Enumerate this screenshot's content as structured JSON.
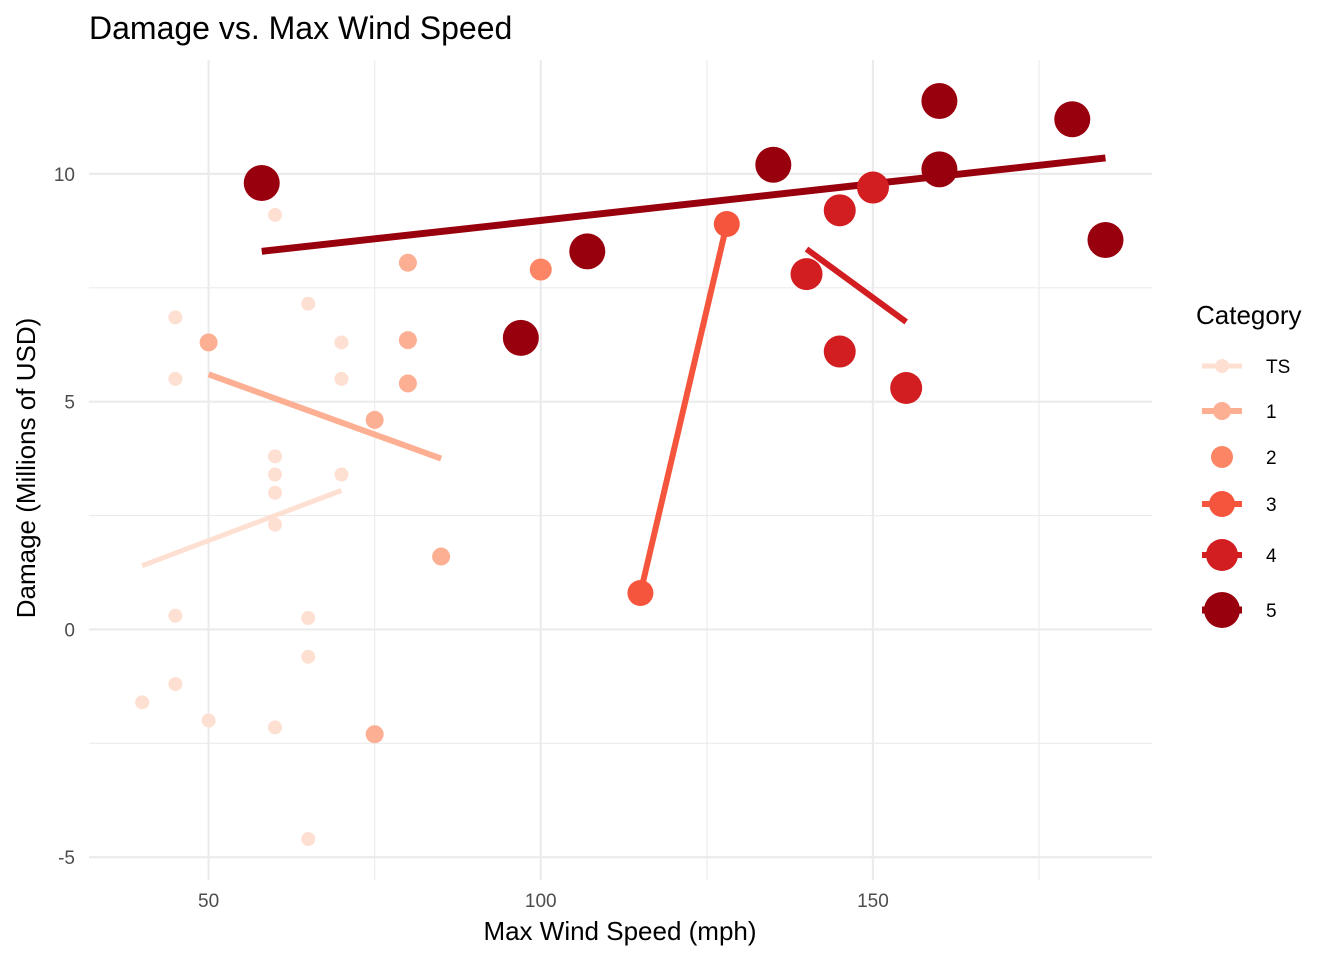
{
  "chart_data": {
    "type": "scatter",
    "title": "Damage vs. Max Wind Speed",
    "xlabel": "Max Wind Speed (mph)",
    "ylabel": "Damage (Millions of USD)",
    "xlim": [
      32,
      192
    ],
    "ylim": [
      -5.5,
      12.5
    ],
    "x_ticks": [
      50,
      100,
      150
    ],
    "x_tick_labels": [
      "50",
      "100",
      "150"
    ],
    "x_minor_ticks": [
      75,
      125,
      175
    ],
    "y_ticks": [
      -5,
      0,
      5,
      10
    ],
    "y_tick_labels": [
      "-5",
      "0",
      "5",
      "10"
    ],
    "y_minor_ticks": [
      -2.5,
      2.5,
      7.5
    ],
    "grid": true,
    "legend": {
      "title": "Category",
      "position": "right"
    },
    "series": [
      {
        "name": "TS",
        "color": "#fee0d2",
        "point_size": 7,
        "line_width": 5,
        "points": [
          [
            40,
            -1.6
          ],
          [
            45,
            6.85
          ],
          [
            45,
            5.5
          ],
          [
            45,
            0.3
          ],
          [
            45,
            -1.2
          ],
          [
            50,
            -2.0
          ],
          [
            60,
            9.1
          ],
          [
            60,
            3.8
          ],
          [
            60,
            3.4
          ],
          [
            60,
            3.0
          ],
          [
            60,
            2.3
          ],
          [
            60,
            -2.15
          ],
          [
            65,
            7.15
          ],
          [
            65,
            0.25
          ],
          [
            65,
            -0.6
          ],
          [
            65,
            -4.6
          ],
          [
            70,
            6.3
          ],
          [
            70,
            5.5
          ],
          [
            70,
            3.4
          ]
        ],
        "trend": [
          [
            40,
            1.4
          ],
          [
            70,
            3.05
          ]
        ]
      },
      {
        "name": "1",
        "color": "#fcaf93",
        "point_size": 9,
        "line_width": 6,
        "points": [
          [
            50,
            6.3
          ],
          [
            75,
            4.6
          ],
          [
            75,
            -2.3
          ],
          [
            80,
            8.05
          ],
          [
            80,
            6.35
          ],
          [
            80,
            5.4
          ],
          [
            85,
            1.6
          ]
        ],
        "trend": [
          [
            50,
            5.6
          ],
          [
            85,
            3.75
          ]
        ]
      },
      {
        "name": "2",
        "color": "#fc8565",
        "point_size": 11,
        "line_width": 6,
        "points": [
          [
            100,
            7.9
          ]
        ],
        "trend": []
      },
      {
        "name": "3",
        "color": "#f5553d",
        "point_size": 13,
        "line_width": 6,
        "points": [
          [
            115,
            0.8
          ],
          [
            128,
            8.9
          ]
        ],
        "trend": [
          [
            115,
            0.8
          ],
          [
            128,
            8.9
          ]
        ]
      },
      {
        "name": "4",
        "color": "#d21d21",
        "point_size": 16,
        "line_width": 6,
        "points": [
          [
            140,
            7.8
          ],
          [
            145,
            9.2
          ],
          [
            145,
            6.1
          ],
          [
            150,
            9.7
          ],
          [
            155,
            5.3
          ]
        ],
        "trend": [
          [
            140,
            8.35
          ],
          [
            155,
            6.75
          ]
        ]
      },
      {
        "name": "5",
        "color": "#99000d",
        "point_size": 18,
        "line_width": 7,
        "points": [
          [
            58,
            9.8
          ],
          [
            97,
            6.4
          ],
          [
            107,
            8.3
          ],
          [
            135,
            10.2
          ],
          [
            160,
            11.6
          ],
          [
            160,
            10.1
          ],
          [
            180,
            11.2
          ],
          [
            185,
            8.55
          ]
        ],
        "trend": [
          [
            58,
            8.3
          ],
          [
            185,
            10.35
          ]
        ]
      }
    ]
  }
}
